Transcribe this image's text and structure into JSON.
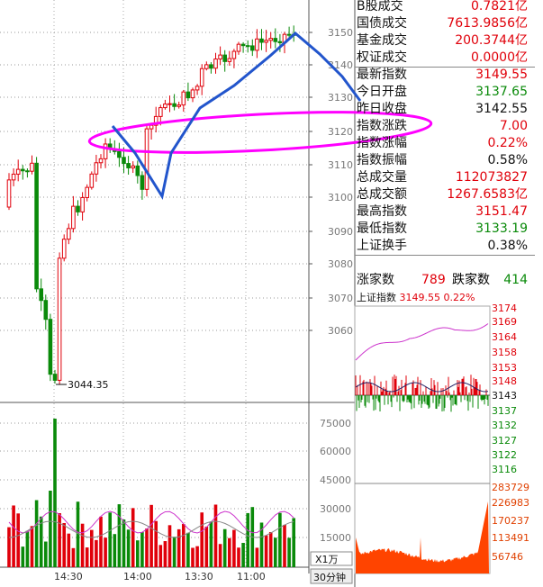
{
  "main_chart": {
    "price_axis": [
      "3150",
      "3140",
      "3130",
      "3120",
      "3110",
      "3100",
      "3090",
      "3080",
      "3070",
      "3060"
    ],
    "low_marker": "3044.35",
    "volume_axis": [
      "75000",
      "60000",
      "45000",
      "30000",
      "15000"
    ],
    "volume_unit": "X1万",
    "time_axis": [
      "14:30",
      "14:00",
      "13:30",
      "11:00"
    ],
    "period_tab": "30分钟"
  },
  "stats": [
    {
      "label": "B股成交",
      "value": "0.7821亿",
      "color": "red"
    },
    {
      "label": "国债成交",
      "value": "7613.9856亿",
      "color": "red"
    },
    {
      "label": "基金成交",
      "value": "200.3744亿",
      "color": "red"
    },
    {
      "label": "权证成交",
      "value": "0.0000亿",
      "color": "red"
    },
    {
      "label": "最新指数",
      "value": "3149.55",
      "color": "red"
    },
    {
      "label": "今日开盘",
      "value": "3137.65",
      "color": "grn"
    },
    {
      "label": "昨日收盘",
      "value": "3142.55",
      "color": "blk"
    },
    {
      "label": "指数涨跌",
      "value": "7.00",
      "color": "red"
    },
    {
      "label": "指数涨幅",
      "value": "0.22%",
      "color": "red"
    },
    {
      "label": "指数振幅",
      "value": "0.58%",
      "color": "blk"
    },
    {
      "label": "总成交量",
      "value": "112073827",
      "color": "red"
    },
    {
      "label": "总成交额",
      "value": "1267.6583亿",
      "color": "red"
    },
    {
      "label": "最高指数",
      "value": "3151.47",
      "color": "red"
    },
    {
      "label": "最低指数",
      "value": "3133.19",
      "color": "grn"
    },
    {
      "label": "上证换手",
      "value": "0.38%",
      "color": "blk"
    }
  ],
  "breadth": {
    "up_label": "涨家数",
    "up_value": "789",
    "down_label": "跌家数",
    "down_value": "414"
  },
  "mini_chart": {
    "title": "上证指数",
    "value": "3149.55",
    "change": "0.22%",
    "price_axis": [
      "3174",
      "3169",
      "3164",
      "3158",
      "3153",
      "3148",
      "3143",
      "3137",
      "3132",
      "3127",
      "3122",
      "3116"
    ],
    "volume_axis": [
      "283729",
      "226983",
      "170237",
      "113491",
      "56746"
    ]
  },
  "colors": {
    "up": "#e0000a",
    "down": "#0a8a0a",
    "annotation_pink": "#ff00ff",
    "annotation_blue": "#2255cc"
  }
}
